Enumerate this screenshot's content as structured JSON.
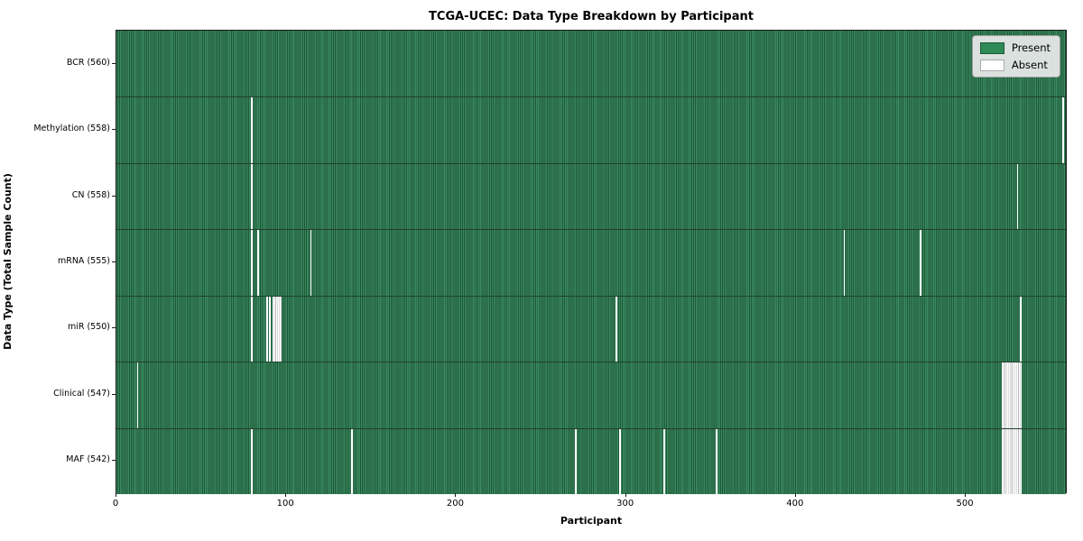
{
  "figure": {
    "title": "TCGA-UCEC: Data Type Breakdown by Participant",
    "xlabel": "Participant",
    "ylabel": "Data Type (Total Sample Count)"
  },
  "legend": {
    "present_label": "Present",
    "absent_label": "Absent"
  },
  "colors": {
    "present": "#2e8b57",
    "present_edge": "#1d5737",
    "absent": "#ffffff",
    "spine": "#1a1a1a",
    "legend_bg": "#eaeaea"
  },
  "chart_data": {
    "type": "heatmap",
    "title": "TCGA-UCEC: Data Type Breakdown by Participant",
    "xlabel": "Participant",
    "ylabel": "Data Type (Total Sample Count)",
    "n_participants": 560,
    "xlim": [
      0,
      560
    ],
    "x_ticks": [
      0,
      100,
      200,
      300,
      400,
      500
    ],
    "legend": [
      "Present",
      "Absent"
    ],
    "legend_position": "upper right",
    "grid": false,
    "rows": [
      {
        "label": "BCR (560)",
        "name": "BCR",
        "count": 560,
        "absent_participants": []
      },
      {
        "label": "Methylation (558)",
        "name": "Methylation",
        "count": 558,
        "absent_participants": [
          79,
          557
        ]
      },
      {
        "label": "CN (558)",
        "name": "CN",
        "count": 558,
        "absent_participants": [
          79,
          530
        ]
      },
      {
        "label": "mRNA (555)",
        "name": "mRNA",
        "count": 555,
        "absent_participants": [
          79,
          83,
          114,
          428,
          473
        ]
      },
      {
        "label": "miR (550)",
        "name": "miR",
        "count": 550,
        "absent_participants": [
          79,
          88,
          90,
          92,
          93,
          94,
          95,
          96,
          294,
          532
        ]
      },
      {
        "label": "Clinical (547)",
        "name": "Clinical",
        "count": 547,
        "absent_participants": [
          12,
          521,
          522,
          523,
          524,
          525,
          526,
          527,
          528,
          529,
          530,
          531,
          532
        ]
      },
      {
        "label": "MAF (542)",
        "name": "MAF",
        "count": 542,
        "absent_participants": [
          79,
          138,
          270,
          296,
          322,
          353,
          521,
          522,
          523,
          524,
          525,
          526,
          527,
          528,
          529,
          530,
          531,
          532
        ]
      }
    ]
  }
}
